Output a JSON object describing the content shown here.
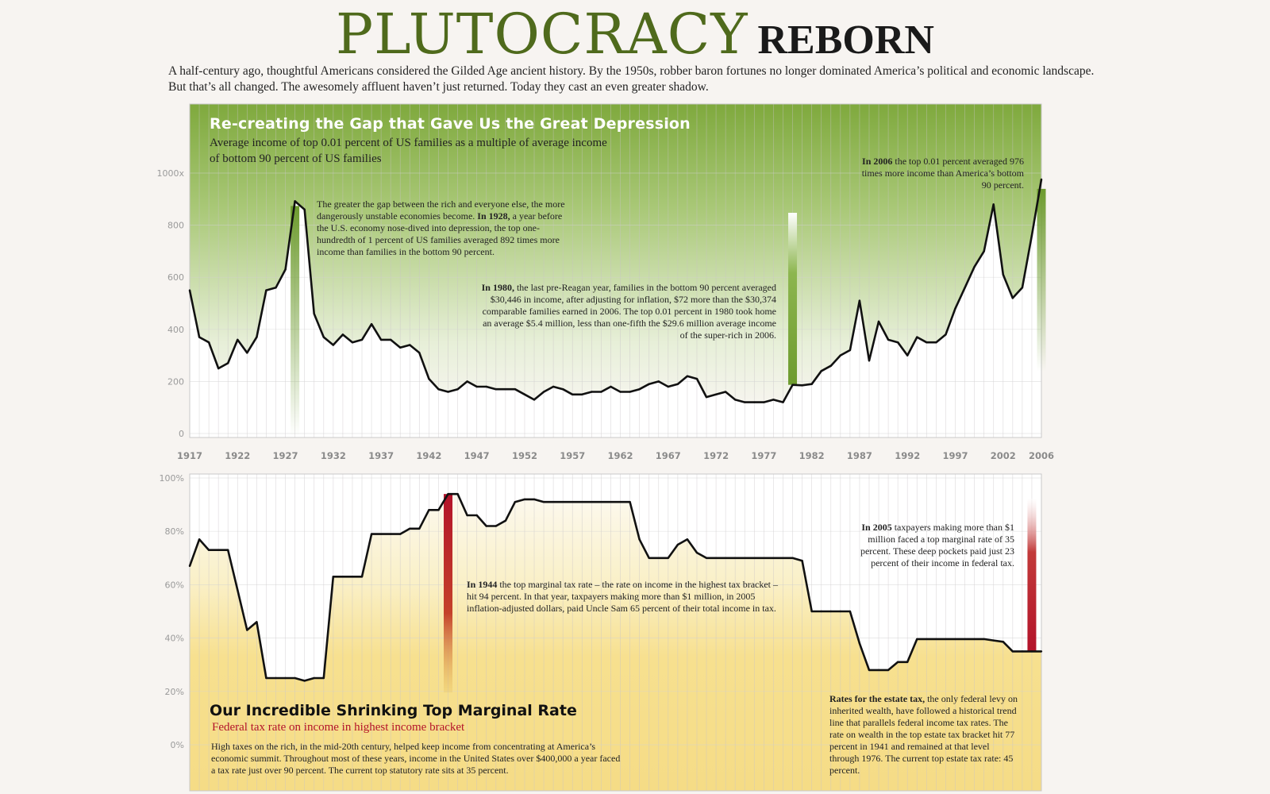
{
  "title_main": "PLUTOCRACY",
  "title_secondary": "REBORN",
  "intro_line1": "A half-century ago, thoughtful Americans considered the Gilded Age ancient history. By the 1950s, robber baron  fortunes no longer dominated  America’s political and economic landscape.",
  "intro_line2": "But that’s all changed.  The awesomely affluent haven’t just returned. Today they cast an even greater shadow.",
  "top_panel": {
    "title": "Re-creating the Gap that Gave Us the Great Depression",
    "subtitle_line1": "Average income of top 0.01 percent of US families as a multiple of average income",
    "subtitle_line2": "of bottom 90 percent of US families",
    "note_1928_lead": "The greater the gap between the rich and everyone else, the more dangerously unstable economies become.",
    "note_1928_bold": "In 1928,",
    "note_1928_rest": "a year before the U.S. economy nose-dived into depression, the top one-hundredth of 1 percent of US families averaged 892 times more income than families in the bottom 90 percent.",
    "note_1980_bold": "In 1980,",
    "note_1980_rest": "the last pre-Reagan year, families in the bottom 90 percent averaged $30,446 in income, after adjusting for inflation, $72 more than the $30,374 comparable families earned in 2006. The top 0.01 percent in 1980 took home an average $5.4 million, less than one-fifth the $29.6 million average income of the super-rich in 2006.",
    "note_2006_bold": "In 2006",
    "note_2006_rest": "the top 0.01 percent averaged 976 times more income than America’s bottom 90 percent."
  },
  "bottom_panel": {
    "title": "Our Incredible Shrinking Top Marginal Rate",
    "subtitle": "Federal tax rate on income in highest income bracket",
    "body": "High taxes on the rich, in the mid-20th century, helped keep income from concentrating at America’s economic summit. Throughout most of these years, income in the United States over $400,000 a year faced a tax rate just over 90 percent. The current top statutory rate sits at 35 percent.",
    "note_1944_bold": "In 1944",
    "note_1944_rest": "the top marginal tax rate – the rate on income in the highest tax bracket – hit 94 percent. In that year, taxpayers making more than $1 million, in 2005 inflation-adjusted dollars, paid Uncle Sam 65 percent of their total income in tax.",
    "note_2005_bold": "In 2005",
    "note_2005_rest": "taxpayers making more than $1 million faced a top marginal rate of 35 percent. These deep pockets paid just 23 percent of their income in federal tax.",
    "note_estate_bold": "Rates for the estate tax,",
    "note_estate_rest": "the only federal levy on inherited wealth, have followed a historical trend line that parallels federal income tax rates. The rate on wealth in the top estate tax bracket hit 77 percent in 1941 and remained at that level through 1976. The current top estate tax rate: 45 percent."
  },
  "colors": {
    "title_green": "#4f6a1c",
    "top_panel_green": "#7fa93d",
    "bottom_panel_yellow": "#f7e08f",
    "highlight_red": "#b3132a",
    "highlight_green": "#6d9b2e",
    "line": "#111111",
    "grid": "#bcbcbc"
  },
  "chart_data": [
    {
      "type": "line",
      "title": "Re-creating the Gap that Gave Us the Great Depression",
      "ylabel": "",
      "xlim": [
        1917,
        2006
      ],
      "ylim": [
        0,
        1000
      ],
      "ytick_labels": [
        "0",
        "200",
        "400",
        "600",
        "800",
        "1000x"
      ],
      "ytick_values": [
        0,
        200,
        400,
        600,
        800,
        1000
      ],
      "xtick_labels": [
        "1917",
        "1922",
        "1927",
        "1932",
        "1937",
        "1942",
        "1947",
        "1952",
        "1957",
        "1962",
        "1967",
        "1972",
        "1977",
        "1982",
        "1987",
        "1992",
        "1997",
        "2002",
        "2006"
      ],
      "xtick_values": [
        1917,
        1922,
        1927,
        1932,
        1937,
        1942,
        1947,
        1952,
        1957,
        1962,
        1967,
        1972,
        1977,
        1982,
        1987,
        1992,
        1997,
        2002,
        2006
      ],
      "grid": "vertical",
      "x": [
        1917,
        1918,
        1919,
        1920,
        1921,
        1922,
        1923,
        1924,
        1925,
        1926,
        1927,
        1928,
        1929,
        1930,
        1931,
        1932,
        1933,
        1934,
        1935,
        1936,
        1937,
        1938,
        1939,
        1940,
        1941,
        1942,
        1943,
        1944,
        1945,
        1946,
        1947,
        1948,
        1949,
        1950,
        1951,
        1952,
        1953,
        1954,
        1955,
        1956,
        1957,
        1958,
        1959,
        1960,
        1961,
        1962,
        1963,
        1964,
        1965,
        1966,
        1967,
        1968,
        1969,
        1970,
        1971,
        1972,
        1973,
        1974,
        1975,
        1976,
        1977,
        1978,
        1979,
        1980,
        1981,
        1982,
        1983,
        1984,
        1985,
        1986,
        1987,
        1988,
        1989,
        1990,
        1991,
        1992,
        1993,
        1994,
        1995,
        1996,
        1997,
        1998,
        1999,
        2000,
        2001,
        2002,
        2003,
        2004,
        2005,
        2006
      ],
      "values": [
        550,
        370,
        350,
        250,
        270,
        360,
        310,
        370,
        550,
        560,
        630,
        892,
        860,
        460,
        370,
        340,
        380,
        350,
        360,
        420,
        360,
        360,
        330,
        340,
        310,
        210,
        170,
        160,
        170,
        200,
        180,
        180,
        170,
        170,
        170,
        150,
        130,
        160,
        180,
        170,
        150,
        150,
        160,
        160,
        180,
        160,
        160,
        170,
        190,
        200,
        180,
        190,
        220,
        210,
        140,
        150,
        160,
        130,
        120,
        120,
        120,
        130,
        120,
        187,
        185,
        190,
        240,
        260,
        300,
        320,
        510,
        280,
        430,
        360,
        350,
        300,
        370,
        350,
        350,
        380,
        480,
        560,
        640,
        700,
        880,
        610,
        520,
        560,
        760,
        976
      ],
      "highlights": [
        {
          "x": 1928,
          "color": "#6d9b2e"
        },
        {
          "x": 1980,
          "color": "#6d9b2e"
        },
        {
          "x": 2006,
          "color": "#6d9b2e"
        }
      ]
    },
    {
      "type": "line",
      "title": "Our Incredible Shrinking Top Marginal Rate",
      "ylabel": "",
      "xlim": [
        1917,
        2006
      ],
      "ylim": [
        0,
        100
      ],
      "ytick_labels": [
        "0%",
        "20%",
        "40%",
        "60%",
        "80%",
        "100%"
      ],
      "ytick_values": [
        0,
        20,
        40,
        60,
        80,
        100
      ],
      "grid": "vertical",
      "x": [
        1917,
        1918,
        1919,
        1920,
        1921,
        1922,
        1923,
        1924,
        1925,
        1926,
        1927,
        1928,
        1929,
        1930,
        1931,
        1932,
        1933,
        1934,
        1935,
        1936,
        1937,
        1938,
        1939,
        1940,
        1941,
        1942,
        1943,
        1944,
        1945,
        1946,
        1947,
        1948,
        1949,
        1950,
        1951,
        1952,
        1953,
        1954,
        1955,
        1956,
        1957,
        1958,
        1959,
        1960,
        1961,
        1962,
        1963,
        1964,
        1965,
        1966,
        1967,
        1968,
        1969,
        1970,
        1971,
        1972,
        1973,
        1974,
        1975,
        1976,
        1977,
        1978,
        1979,
        1980,
        1981,
        1982,
        1983,
        1984,
        1985,
        1986,
        1987,
        1988,
        1989,
        1990,
        1991,
        1992,
        1993,
        1994,
        1995,
        1996,
        1997,
        1998,
        1999,
        2000,
        2001,
        2002,
        2003,
        2004,
        2005,
        2006
      ],
      "values": [
        67,
        77,
        73,
        73,
        73,
        58,
        43,
        46,
        25,
        25,
        25,
        25,
        24,
        25,
        25,
        63,
        63,
        63,
        63,
        79,
        79,
        79,
        79,
        81,
        81,
        88,
        88,
        94,
        94,
        86,
        86,
        82,
        82,
        84,
        91,
        92,
        92,
        91,
        91,
        91,
        91,
        91,
        91,
        91,
        91,
        91,
        91,
        77,
        70,
        70,
        70,
        75,
        77,
        72,
        70,
        70,
        70,
        70,
        70,
        70,
        70,
        70,
        70,
        70,
        69,
        50,
        50,
        50,
        50,
        50,
        38,
        28,
        28,
        28,
        31,
        31,
        39.6,
        39.6,
        39.6,
        39.6,
        39.6,
        39.6,
        39.6,
        39.6,
        39.1,
        38.6,
        35,
        35,
        35,
        35
      ],
      "highlights": [
        {
          "x": 1944,
          "color": "#b3132a"
        },
        {
          "x": 2005,
          "color": "#b3132a"
        }
      ]
    }
  ]
}
